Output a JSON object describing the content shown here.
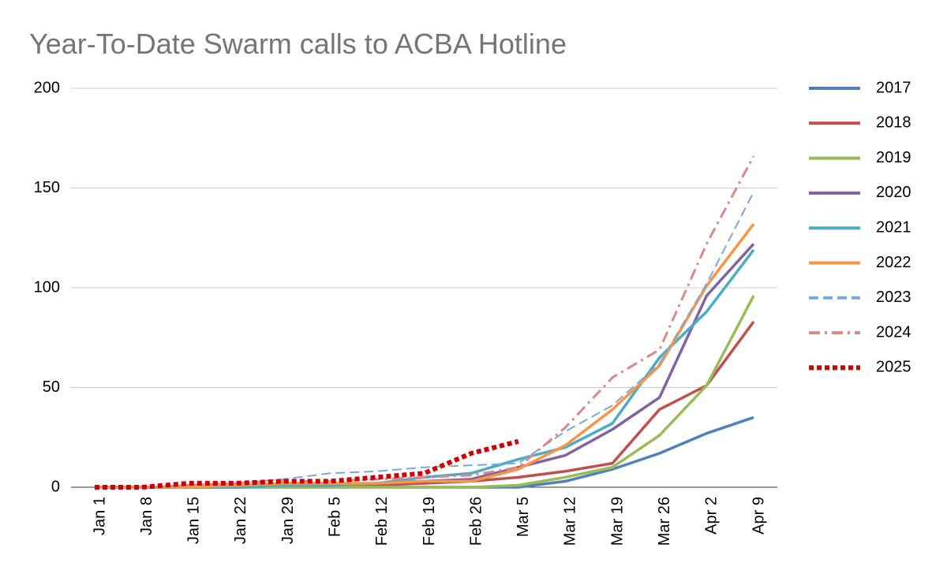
{
  "chart_data": {
    "type": "line",
    "title": "Year-To-Date Swarm calls to ACBA Hotline",
    "categories": [
      "Jan 1",
      "Jan 8",
      "Jan 15",
      "Jan 22",
      "Jan 29",
      "Feb 5",
      "Feb 12",
      "Feb 19",
      "Feb 26",
      "Mar 5",
      "Mar 12",
      "Mar 19",
      "Mar 26",
      "Apr 2",
      "Apr 9"
    ],
    "ylim": [
      0,
      200
    ],
    "yticks": [
      0,
      50,
      100,
      150,
      200
    ],
    "grid": true,
    "legend": "right",
    "series": [
      {
        "name": "2017",
        "color": "#4f81bd",
        "style": "solid",
        "values": [
          0,
          0,
          0,
          0,
          0,
          0,
          0,
          0,
          0,
          0,
          3,
          9,
          17,
          27,
          35
        ]
      },
      {
        "name": "2018",
        "color": "#c0504d",
        "style": "solid",
        "values": [
          0,
          0,
          0,
          0,
          1,
          1,
          1,
          2,
          3,
          5,
          8,
          12,
          39,
          51,
          83
        ]
      },
      {
        "name": "2019",
        "color": "#9bbb59",
        "style": "solid",
        "values": [
          0,
          0,
          0,
          0,
          0,
          0,
          0,
          0,
          0,
          1,
          5,
          10,
          26,
          51,
          96
        ]
      },
      {
        "name": "2020",
        "color": "#8064a2",
        "style": "solid",
        "values": [
          0,
          0,
          0,
          0,
          1,
          1,
          2,
          3,
          4,
          10,
          16,
          29,
          45,
          96,
          122
        ]
      },
      {
        "name": "2021",
        "color": "#4bacc6",
        "style": "solid",
        "values": [
          0,
          0,
          0,
          0,
          1,
          1,
          2,
          5,
          7,
          14,
          20,
          32,
          65,
          88,
          119
        ]
      },
      {
        "name": "2022",
        "color": "#f79646",
        "style": "solid",
        "values": [
          0,
          0,
          0,
          1,
          2,
          2,
          2,
          3,
          3,
          9,
          21,
          39,
          61,
          101,
          132
        ]
      },
      {
        "name": "2023",
        "color": "#7ea6d8",
        "style": "dashed",
        "values": [
          0,
          0,
          1,
          2,
          4,
          7,
          8,
          10,
          11,
          12,
          28,
          41,
          62,
          102,
          148
        ]
      },
      {
        "name": "2024",
        "color": "#d88a87",
        "style": "dashdot",
        "values": [
          0,
          0,
          1,
          2,
          3,
          3,
          4,
          5,
          6,
          10,
          30,
          55,
          69,
          122,
          166
        ]
      },
      {
        "name": "2025",
        "color": "#cc0000",
        "style": "dotted",
        "values": [
          0,
          0,
          2,
          2,
          3,
          3,
          5,
          7,
          17,
          23,
          null,
          null,
          null,
          null,
          null
        ]
      }
    ]
  }
}
